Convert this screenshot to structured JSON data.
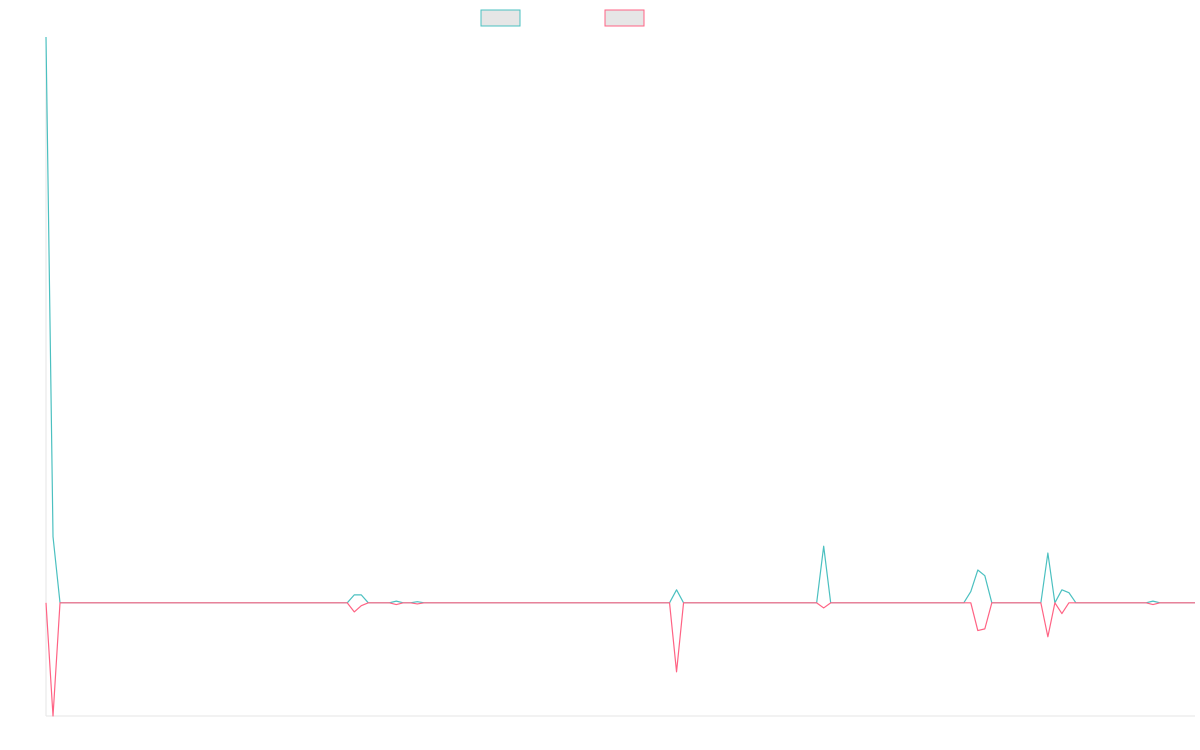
{
  "chart_data": {
    "type": "line",
    "x": [
      0,
      1,
      2,
      43,
      44,
      45,
      46,
      49,
      50,
      51,
      52,
      53,
      54,
      89,
      90,
      91,
      110,
      111,
      112,
      131,
      132,
      133,
      134,
      135,
      142,
      143,
      144,
      145,
      146,
      147,
      157,
      158,
      159,
      164
    ],
    "xlim": [
      0,
      164
    ],
    "ylim": [
      -20,
      100
    ],
    "series": [
      {
        "color": "#4bc0c0",
        "values": [
          100,
          11.7,
          0,
          0,
          1.4,
          1.4,
          0,
          0,
          0.3,
          0,
          0,
          0.2,
          0,
          0,
          2.3,
          0,
          0,
          10,
          0,
          0,
          2,
          5.8,
          4.8,
          0,
          0,
          8.8,
          0,
          2.3,
          1.8,
          0,
          0,
          0.3,
          0,
          0
        ]
      },
      {
        "color": "#ff6384",
        "values": [
          0,
          -20,
          0,
          0,
          -1.6,
          -0.5,
          0,
          0,
          -0.3,
          0,
          0,
          -0.2,
          0,
          0,
          -12.2,
          0,
          0,
          -0.9,
          0,
          0,
          0,
          -4.9,
          -4.6,
          0,
          0,
          -6,
          0,
          -1.9,
          0,
          0,
          0,
          -0.3,
          0,
          0
        ]
      }
    ]
  }
}
